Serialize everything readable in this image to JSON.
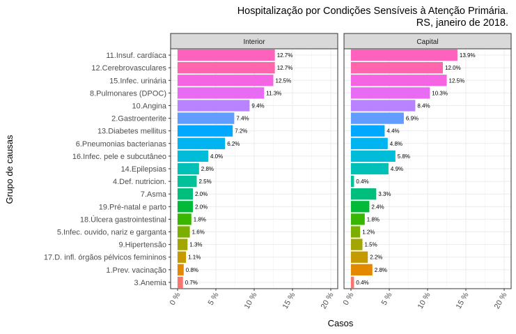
{
  "chart_data": {
    "type": "bar",
    "orientation": "horizontal",
    "title_lines": [
      "Hospitalização por Condições Sensíveis à Atenção Primária.",
      "RS, janeiro de 2018."
    ],
    "xlabel": "Casos",
    "ylabel": "Grupo de causas",
    "xlim": [
      0,
      20
    ],
    "x_ticks": [
      0,
      5,
      10,
      15,
      20
    ],
    "x_tick_labels": [
      "0 %",
      "5 %",
      "10 %",
      "15 %",
      "20 %"
    ],
    "grid": true,
    "legend": "none",
    "categories": [
      "11.Insuf. cardíaca",
      "12.Cerebrovasculares",
      "15.Infec. urinária",
      "8.Pulmonares (DPOC)",
      "10.Angina",
      "2.Gastroenterite",
      "13.Diabetes mellitus",
      "6.Pneumonias bacterianas",
      "16.Infec. pele e subcutâneo",
      "14.Epilepsias",
      "4.Def. nutricion.",
      "7.Asma",
      "19.Pré-natal e parto",
      "18.Úlcera gastrointestinal",
      "5.Infec. ouvido, nariz e garganta",
      "9.Hipertensão",
      "17.D. infl. órgãos pélvicos femininos",
      "1.Prev. vacinação",
      "3.Anemia"
    ],
    "colors": [
      "#FF62BC",
      "#FF65AC",
      "#F564E3",
      "#E76BF3",
      "#B983FF",
      "#619CFF",
      "#00A9FF",
      "#00B4EF",
      "#00BCD8",
      "#00C0B8",
      "#00C19A",
      "#00BF7D",
      "#00BA38",
      "#39B600",
      "#7CAE00",
      "#A3A500",
      "#C49A00",
      "#E38900",
      "#F8766D"
    ],
    "panels": [
      {
        "name": "Interior",
        "values": [
          12.7,
          12.7,
          12.5,
          11.3,
          9.4,
          7.4,
          7.2,
          6.2,
          4.0,
          2.8,
          2.5,
          2.0,
          2.0,
          1.8,
          1.6,
          1.3,
          1.1,
          0.8,
          0.7
        ],
        "labels": [
          "12.7%",
          "12.7%",
          "12.5%",
          "11.3%",
          "9.4%",
          "7.4%",
          "7.2%",
          "6.2%",
          "4.0%",
          "2.8%",
          "2.5%",
          "2.0%",
          "2.0%",
          "1.8%",
          "1.6%",
          "1.3%",
          "1.1%",
          "0.8%",
          "0.7%"
        ]
      },
      {
        "name": "Capital",
        "values": [
          13.9,
          12.0,
          12.5,
          10.3,
          8.4,
          6.9,
          4.4,
          4.8,
          5.8,
          4.9,
          0.4,
          3.3,
          2.4,
          1.8,
          1.2,
          1.5,
          2.2,
          2.8,
          0.4
        ],
        "labels": [
          "13.9%",
          "12.0%",
          "12.5%",
          "10.3%",
          "8.4%",
          "6.9%",
          "4.4%",
          "4.8%",
          "5.8%",
          "4.9%",
          "0.4%",
          "3.3%",
          "2.4%",
          "1.8%",
          "1.2%",
          "1.5%",
          "2.2%",
          "2.8%",
          "0.4%"
        ]
      }
    ]
  }
}
